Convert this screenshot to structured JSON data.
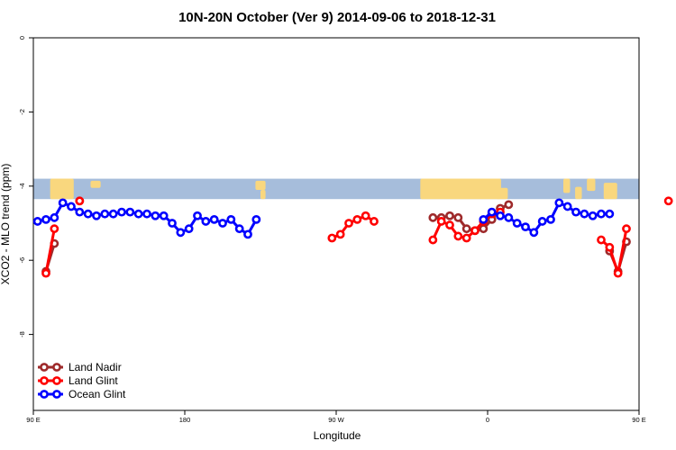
{
  "chart_data": {
    "type": "line",
    "title": "10N-20N October (Ver 9)   2014-09-06 to 2018-12-31",
    "xlabel": "Longitude",
    "ylabel": "XCO2 - MLO trend (ppm)",
    "xlim": [
      90,
      450
    ],
    "ylim": [
      -10,
      0
    ],
    "x_ticks": [
      {
        "value": 90,
        "label": "90 E"
      },
      {
        "value": 180,
        "label": "180"
      },
      {
        "value": 270,
        "label": "90 W"
      },
      {
        "value": 360,
        "label": "0"
      },
      {
        "value": 450,
        "label": "90 E"
      },
      {
        "value": 540,
        "label": "180"
      }
    ],
    "y_ticks": [
      {
        "value": 0,
        "label": "0"
      },
      {
        "value": -2,
        "label": "-2"
      },
      {
        "value": -4,
        "label": "-4"
      },
      {
        "value": -6,
        "label": "-6"
      },
      {
        "value": -8,
        "label": "-8"
      }
    ],
    "grid": false,
    "legend_position": "bottom-left",
    "map_strip": {
      "y_top": -3.8,
      "y_bottom": -4.35,
      "ocean_color": "#a6bddb",
      "land_color": "#f9d77e"
    },
    "series": [
      {
        "name": "Land Nadir",
        "color": "#9e2a2b",
        "points": [
          [
            97.5,
            -6.3
          ],
          [
            102.5,
            -5.55
          ],
          [
            117.5,
            -4.4
          ],
          [
            327.5,
            -4.85
          ],
          [
            332.5,
            -4.85
          ],
          [
            337.5,
            -4.8
          ],
          [
            342.5,
            -4.85
          ],
          [
            347.5,
            -5.15
          ],
          [
            352.5,
            -5.2
          ],
          [
            357.5,
            -5.15
          ],
          [
            362.5,
            -4.9
          ],
          [
            367.5,
            -4.6
          ],
          [
            372.5,
            -4.5
          ],
          [
            432.5,
            -5.75
          ],
          [
            437.5,
            -6.3
          ],
          [
            442.5,
            -5.5
          ]
        ]
      },
      {
        "name": "Land Glint",
        "color": "#ff0000",
        "points": [
          [
            97.5,
            -6.35
          ],
          [
            102.5,
            -5.15
          ],
          [
            117.5,
            -4.4
          ],
          [
            267.5,
            -5.4
          ],
          [
            272.5,
            -5.3
          ],
          [
            277.5,
            -5.0
          ],
          [
            282.5,
            -4.9
          ],
          [
            287.5,
            -4.8
          ],
          [
            292.5,
            -4.95
          ],
          [
            327.5,
            -5.45
          ],
          [
            332.5,
            -4.95
          ],
          [
            337.5,
            -5.05
          ],
          [
            342.5,
            -5.35
          ],
          [
            347.5,
            -5.4
          ],
          [
            352.5,
            -5.2
          ],
          [
            357.5,
            -4.95
          ],
          [
            362.5,
            -4.75
          ],
          [
            367.5,
            -4.7
          ],
          [
            427.5,
            -5.45
          ],
          [
            432.5,
            -5.65
          ],
          [
            437.5,
            -6.35
          ],
          [
            442.5,
            -5.15
          ],
          [
            467.5,
            -4.4
          ]
        ]
      },
      {
        "name": "Ocean Glint",
        "color": "#0000ff",
        "points": [
          [
            92.5,
            -4.95
          ],
          [
            97.5,
            -4.9
          ],
          [
            102.5,
            -4.85
          ],
          [
            107.5,
            -4.45
          ],
          [
            112.5,
            -4.55
          ],
          [
            117.5,
            -4.7
          ],
          [
            122.5,
            -4.75
          ],
          [
            127.5,
            -4.8
          ],
          [
            132.5,
            -4.75
          ],
          [
            137.5,
            -4.75
          ],
          [
            142.5,
            -4.7
          ],
          [
            147.5,
            -4.7
          ],
          [
            152.5,
            -4.75
          ],
          [
            157.5,
            -4.75
          ],
          [
            162.5,
            -4.8
          ],
          [
            167.5,
            -4.8
          ],
          [
            172.5,
            -5.0
          ],
          [
            177.5,
            -5.25
          ],
          [
            182.5,
            -5.15
          ],
          [
            187.5,
            -4.8
          ],
          [
            192.5,
            -4.95
          ],
          [
            197.5,
            -4.9
          ],
          [
            202.5,
            -5.0
          ],
          [
            207.5,
            -4.9
          ],
          [
            212.5,
            -5.15
          ],
          [
            217.5,
            -5.3
          ],
          [
            222.5,
            -4.9
          ],
          [
            357.5,
            -4.9
          ],
          [
            362.5,
            -4.7
          ],
          [
            367.5,
            -4.8
          ],
          [
            372.5,
            -4.85
          ],
          [
            377.5,
            -5.0
          ],
          [
            382.5,
            -5.1
          ],
          [
            387.5,
            -5.25
          ],
          [
            392.5,
            -4.95
          ],
          [
            397.5,
            -4.9
          ],
          [
            402.5,
            -4.45
          ],
          [
            407.5,
            -4.55
          ],
          [
            412.5,
            -4.7
          ],
          [
            417.5,
            -4.75
          ],
          [
            422.5,
            -4.8
          ],
          [
            427.5,
            -4.75
          ],
          [
            432.5,
            -4.75
          ]
        ]
      }
    ]
  }
}
